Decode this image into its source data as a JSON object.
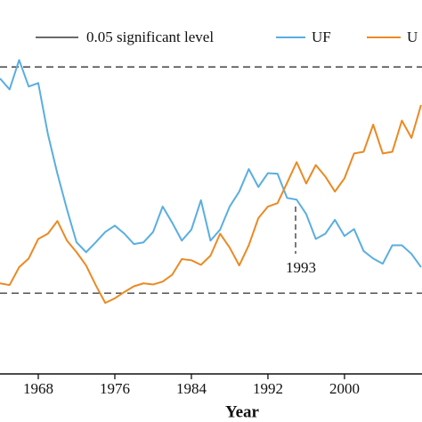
{
  "chart_data": {
    "type": "line",
    "xlabel": "Year",
    "x": [
      1964,
      1965,
      1966,
      1967,
      1968,
      1969,
      1970,
      1971,
      1972,
      1973,
      1974,
      1975,
      1976,
      1977,
      1978,
      1979,
      1980,
      1981,
      1982,
      1983,
      1984,
      1985,
      1986,
      1987,
      1988,
      1989,
      1990,
      1991,
      1992,
      1993,
      1994,
      1995,
      1996,
      1997,
      1998,
      1999,
      2000,
      2001,
      2002,
      2003,
      2004,
      2005,
      2006,
      2007,
      2008
    ],
    "series": [
      {
        "name": "UF",
        "color": "#5aaee0",
        "values": [
          1.76,
          1.57,
          2.08,
          1.62,
          1.68,
          0.8,
          0.11,
          -0.51,
          -1.08,
          -1.25,
          -1.08,
          -0.9,
          -0.79,
          -0.93,
          -1.11,
          -1.08,
          -0.9,
          -0.46,
          -0.74,
          -1.05,
          -0.86,
          -0.35,
          -1.05,
          -0.86,
          -0.46,
          -0.2,
          0.19,
          -0.12,
          0.12,
          0.11,
          -0.31,
          -0.34,
          -0.59,
          -1.02,
          -0.93,
          -0.69,
          -0.97,
          -0.85,
          -1.23,
          -1.36,
          -1.45,
          -1.13,
          -1.13,
          -1.28,
          -1.51
        ]
      },
      {
        "name": "U",
        "color": "#ea8a23",
        "values": [
          -1.79,
          -1.82,
          -1.51,
          -1.36,
          -1.02,
          -0.93,
          -0.71,
          -1.05,
          -1.25,
          -1.48,
          -1.82,
          -2.13,
          -2.05,
          -1.94,
          -1.84,
          -1.79,
          -1.81,
          -1.76,
          -1.64,
          -1.37,
          -1.39,
          -1.47,
          -1.31,
          -0.93,
          -1.17,
          -1.48,
          -1.13,
          -0.66,
          -0.46,
          -0.4,
          -0.05,
          0.31,
          -0.06,
          0.26,
          0.06,
          -0.2,
          0.03,
          0.46,
          0.49,
          0.96,
          0.46,
          0.49,
          1.03,
          0.73,
          1.3
        ]
      }
    ],
    "significance": {
      "name": "0.05 significant level",
      "values": [
        1.96,
        -1.96
      ]
    },
    "annotation": "1993",
    "xlim": [
      1964,
      2008.1
    ],
    "xticks": [
      1968,
      1976,
      1984,
      1992,
      2000
    ],
    "ylim": [
      -3.36,
      3.12
    ]
  }
}
